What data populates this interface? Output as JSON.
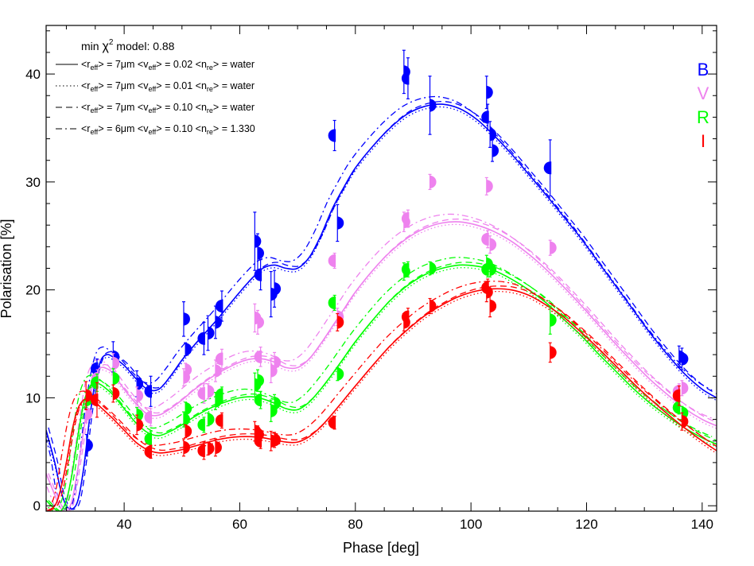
{
  "chart_data": {
    "type": "scatter",
    "xlabel": "Phase [deg]",
    "ylabel": "Polarisation [%]",
    "xlim": [
      26.5,
      142.5
    ],
    "ylim": [
      -0.5,
      44.5
    ],
    "x_ticks": [
      40,
      60,
      80,
      100,
      120,
      140
    ],
    "y_ticks": [
      0,
      10,
      20,
      30,
      40
    ],
    "grid": false,
    "annotation": {
      "prefix": "min ",
      "chi": "χ",
      "sup": "2",
      "suffix": " model: 0.88"
    },
    "models": [
      {
        "style": "solid",
        "r_eff": "7μm",
        "v_eff": "0.02",
        "n_re": "water"
      },
      {
        "style": "dotted",
        "r_eff": "7μm",
        "v_eff": "0.01",
        "n_re": "water"
      },
      {
        "style": "dashed",
        "r_eff": "7μm",
        "v_eff": "0.10",
        "n_re": "water"
      },
      {
        "style": "dashdot",
        "r_eff": "6μm",
        "v_eff": "0.10",
        "n_re": "1.330"
      }
    ],
    "legend_words": {
      "r": "r",
      "v": "v",
      "n": "n",
      "eff": "eff",
      "re": "re"
    },
    "bands": [
      {
        "name": "B",
        "color": "#0000ff"
      },
      {
        "name": "V",
        "color": "#ee82ee"
      },
      {
        "name": "R",
        "color": "#00ff00"
      },
      {
        "name": "I",
        "color": "#ff0000"
      }
    ],
    "series": [
      {
        "band": "B",
        "color": "#0000ff",
        "x": [
          33.5,
          35.3,
          38.1,
          42.2,
          44.6,
          50.3,
          50.6,
          53.8,
          54.5,
          55.8,
          56.9,
          62.6,
          63.1,
          63.6,
          65.4,
          66.0,
          76.4,
          76.9,
          88.4,
          89.1,
          92.9,
          102.7,
          102.9,
          103.3,
          103.7,
          113.7,
          136.0,
          136.5
        ],
        "y": [
          5.6,
          12.7,
          13.8,
          11.3,
          10.6,
          17.3,
          14.5,
          15.5,
          16.0,
          17.0,
          18.5,
          24.5,
          23.4,
          21.4,
          19.6,
          20.1,
          34.3,
          26.2,
          40.2,
          39.6,
          37.1,
          38.3,
          36.0,
          34.4,
          32.9,
          31.3,
          13.8,
          13.6
        ],
        "err": [
          1.0,
          0.9,
          1.4,
          1.2,
          1.4,
          1.6,
          0.6,
          1.5,
          1.6,
          1.5,
          1.4,
          2.7,
          1.8,
          1.4,
          2.1,
          1.7,
          1.4,
          1.7,
          2.0,
          1.9,
          2.7,
          1.5,
          1.2,
          1.2,
          1.0,
          2.6,
          1.0,
          1.0
        ]
      },
      {
        "band": "V",
        "color": "#ee82ee",
        "x": [
          33.4,
          35.4,
          38.1,
          42.2,
          44.6,
          50.3,
          50.6,
          53.8,
          54.5,
          55.8,
          56.9,
          62.6,
          63.1,
          63.6,
          65.4,
          66.0,
          76.4,
          76.9,
          88.4,
          89.1,
          92.9,
          102.7,
          102.9,
          103.3,
          113.7,
          136.0,
          136.5
        ],
        "y": [
          8.5,
          11.8,
          13.2,
          10.2,
          8.2,
          11.9,
          12.6,
          10.4,
          10.6,
          12.5,
          13.6,
          17.4,
          17.0,
          13.8,
          12.5,
          13.3,
          22.7,
          17.5,
          26.3,
          26.6,
          30.0,
          29.6,
          24.7,
          24.2,
          23.9,
          10.6,
          10.9
        ],
        "err": [
          0.8,
          0.8,
          0.9,
          0.8,
          0.8,
          0.8,
          0.6,
          0.9,
          0.7,
          1.0,
          0.9,
          1.3,
          1.1,
          0.9,
          1.1,
          0.9,
          0.7,
          0.8,
          0.9,
          0.8,
          0.7,
          0.8,
          0.8,
          0.8,
          0.7,
          0.7,
          0.7
        ]
      },
      {
        "band": "R",
        "color": "#00ff00",
        "x": [
          33.4,
          35.3,
          38.1,
          42.2,
          44.6,
          50.3,
          50.6,
          53.8,
          54.5,
          55.8,
          56.9,
          62.6,
          63.1,
          63.6,
          65.4,
          66.0,
          76.4,
          76.9,
          88.4,
          89.1,
          92.9,
          102.7,
          102.9,
          103.3,
          113.7,
          136.0,
          136.5
        ],
        "y": [
          9.8,
          11.4,
          11.8,
          8.4,
          6.2,
          8.0,
          9.0,
          7.5,
          8.0,
          9.7,
          10.3,
          11.2,
          11.6,
          9.8,
          8.8,
          9.5,
          18.8,
          12.2,
          21.7,
          21.9,
          22.0,
          22.4,
          21.9,
          21.9,
          17.2,
          9.1,
          8.6
        ],
        "err": [
          0.7,
          0.8,
          0.9,
          0.7,
          0.7,
          0.7,
          0.6,
          0.7,
          0.6,
          0.8,
          0.7,
          1.1,
          1.0,
          0.8,
          1.0,
          0.8,
          0.7,
          0.6,
          0.8,
          0.7,
          0.6,
          0.8,
          0.7,
          0.7,
          1.3,
          0.6,
          0.6
        ]
      },
      {
        "band": "I",
        "color": "#ff0000",
        "x": [
          33.4,
          35.3,
          38.1,
          42.2,
          44.6,
          50.3,
          50.6,
          53.8,
          54.5,
          55.8,
          56.9,
          62.6,
          63.1,
          63.6,
          65.4,
          66.0,
          76.4,
          76.9,
          88.4,
          89.1,
          92.9,
          102.7,
          102.9,
          103.3,
          113.7,
          136.0,
          136.5
        ],
        "y": [
          10.2,
          9.8,
          10.4,
          7.5,
          5.0,
          5.4,
          6.9,
          5.1,
          5.3,
          5.4,
          7.9,
          6.9,
          6.6,
          6.0,
          6.0,
          6.1,
          7.7,
          17.0,
          17.0,
          17.5,
          18.5,
          19.8,
          20.2,
          18.5,
          14.2,
          10.2,
          7.8
        ],
        "err": [
          1.3,
          1.6,
          0.8,
          0.9,
          0.6,
          0.8,
          0.6,
          0.8,
          0.6,
          0.8,
          0.7,
          0.9,
          0.8,
          0.7,
          0.9,
          0.7,
          0.6,
          0.8,
          0.8,
          0.8,
          0.7,
          0.9,
          0.8,
          1.0,
          0.9,
          0.9,
          0.8
        ]
      }
    ],
    "model_curves": [
      {
        "band": "B",
        "color": "#0000ff",
        "x": [
          26.5,
          28,
          29,
          30,
          31,
          32,
          33,
          34,
          35,
          36,
          37,
          38,
          40,
          42,
          44,
          46,
          48,
          50,
          52,
          54,
          56,
          58,
          60,
          62,
          64,
          66,
          68,
          70,
          72,
          74,
          76,
          78,
          80,
          83,
          86,
          89,
          92,
          95,
          98,
          101,
          104,
          107,
          110,
          113,
          116,
          119,
          122,
          125,
          128,
          131,
          134,
          137,
          140,
          142.5
        ],
        "y": [
          7.0,
          4.0,
          1.5,
          0.0,
          -0.3,
          0.5,
          3.5,
          8.0,
          11.5,
          13.5,
          14.0,
          13.8,
          13.0,
          11.8,
          10.8,
          10.8,
          12.0,
          13.5,
          14.8,
          16.0,
          17.2,
          18.5,
          19.8,
          21.0,
          22.0,
          22.3,
          22.0,
          22.0,
          23.0,
          25.0,
          27.5,
          29.5,
          31.3,
          33.3,
          35.0,
          36.3,
          37.0,
          37.2,
          36.8,
          35.8,
          34.3,
          32.6,
          30.7,
          28.8,
          26.8,
          24.8,
          22.6,
          20.4,
          18.2,
          16.0,
          14.0,
          12.2,
          10.8,
          10.0
        ]
      },
      {
        "band": "V",
        "color": "#ee82ee",
        "x": [
          26.5,
          28,
          29,
          30,
          31,
          32,
          33,
          34,
          35,
          36,
          37,
          38,
          40,
          42,
          44,
          46,
          48,
          50,
          52,
          54,
          56,
          58,
          60,
          62,
          64,
          66,
          68,
          70,
          72,
          74,
          76,
          78,
          80,
          83,
          86,
          89,
          92,
          95,
          98,
          101,
          104,
          107,
          110,
          113,
          116,
          119,
          122,
          125,
          128,
          131,
          134,
          137,
          140,
          142.5
        ],
        "y": [
          3.0,
          1.0,
          -0.2,
          -0.5,
          0.5,
          3.5,
          7.0,
          10.5,
          12.2,
          12.8,
          12.7,
          12.3,
          10.8,
          9.5,
          8.5,
          8.4,
          9.0,
          9.8,
          10.7,
          11.5,
          12.2,
          12.8,
          13.3,
          13.6,
          13.6,
          13.3,
          12.8,
          12.8,
          13.6,
          15.0,
          16.6,
          18.2,
          19.8,
          21.8,
          23.5,
          24.8,
          25.7,
          26.2,
          26.3,
          26.0,
          25.4,
          24.5,
          23.3,
          21.9,
          20.3,
          18.6,
          16.8,
          15.0,
          13.3,
          11.7,
          10.3,
          9.0,
          8.0,
          7.4
        ]
      },
      {
        "band": "R",
        "color": "#00ff00",
        "x": [
          26.5,
          28,
          29,
          30,
          31,
          32,
          33,
          34,
          35,
          36,
          37,
          38,
          40,
          42,
          44,
          46,
          48,
          50,
          52,
          54,
          56,
          58,
          60,
          62,
          64,
          66,
          68,
          70,
          72,
          74,
          76,
          78,
          80,
          83,
          86,
          89,
          92,
          95,
          98,
          101,
          104,
          107,
          110,
          113,
          116,
          119,
          122,
          125,
          128,
          131,
          134,
          137,
          140,
          142.5
        ],
        "y": [
          0.5,
          -0.3,
          -0.5,
          0.5,
          3.0,
          6.5,
          9.5,
          11.0,
          11.4,
          11.2,
          10.8,
          10.3,
          9.0,
          7.7,
          6.8,
          6.5,
          6.9,
          7.5,
          8.2,
          8.8,
          9.3,
          9.7,
          10.0,
          10.1,
          9.9,
          9.5,
          9.0,
          8.9,
          9.6,
          10.8,
          12.2,
          13.7,
          15.2,
          17.2,
          19.0,
          20.4,
          21.4,
          22.0,
          22.3,
          22.2,
          21.8,
          21.0,
          20.0,
          18.8,
          17.3,
          15.8,
          14.1,
          12.5,
          10.9,
          9.5,
          8.3,
          7.2,
          6.3,
          5.7
        ]
      },
      {
        "band": "I",
        "color": "#ff0000",
        "x": [
          26.5,
          28,
          29,
          30,
          31,
          32,
          33,
          34,
          35,
          36,
          37,
          38,
          40,
          42,
          44,
          46,
          48,
          50,
          52,
          54,
          56,
          58,
          60,
          62,
          64,
          66,
          68,
          70,
          72,
          74,
          76,
          78,
          80,
          83,
          86,
          89,
          92,
          95,
          98,
          101,
          104,
          107,
          110,
          113,
          116,
          119,
          122,
          125,
          128,
          131,
          134,
          137,
          140,
          142.5
        ],
        "y": [
          -0.5,
          0.0,
          1.5,
          4.0,
          7.0,
          9.0,
          9.8,
          9.9,
          9.6,
          9.1,
          8.6,
          8.1,
          7.0,
          5.9,
          5.2,
          4.9,
          5.0,
          5.2,
          5.5,
          5.8,
          6.1,
          6.3,
          6.4,
          6.4,
          6.3,
          6.1,
          5.9,
          5.9,
          6.4,
          7.3,
          8.5,
          9.8,
          11.1,
          13.0,
          14.8,
          16.3,
          17.6,
          18.6,
          19.4,
          19.9,
          20.1,
          20.0,
          19.5,
          18.6,
          17.5,
          16.1,
          14.6,
          13.0,
          11.4,
          9.9,
          8.5,
          7.2,
          6.0,
          5.1
        ]
      }
    ]
  }
}
